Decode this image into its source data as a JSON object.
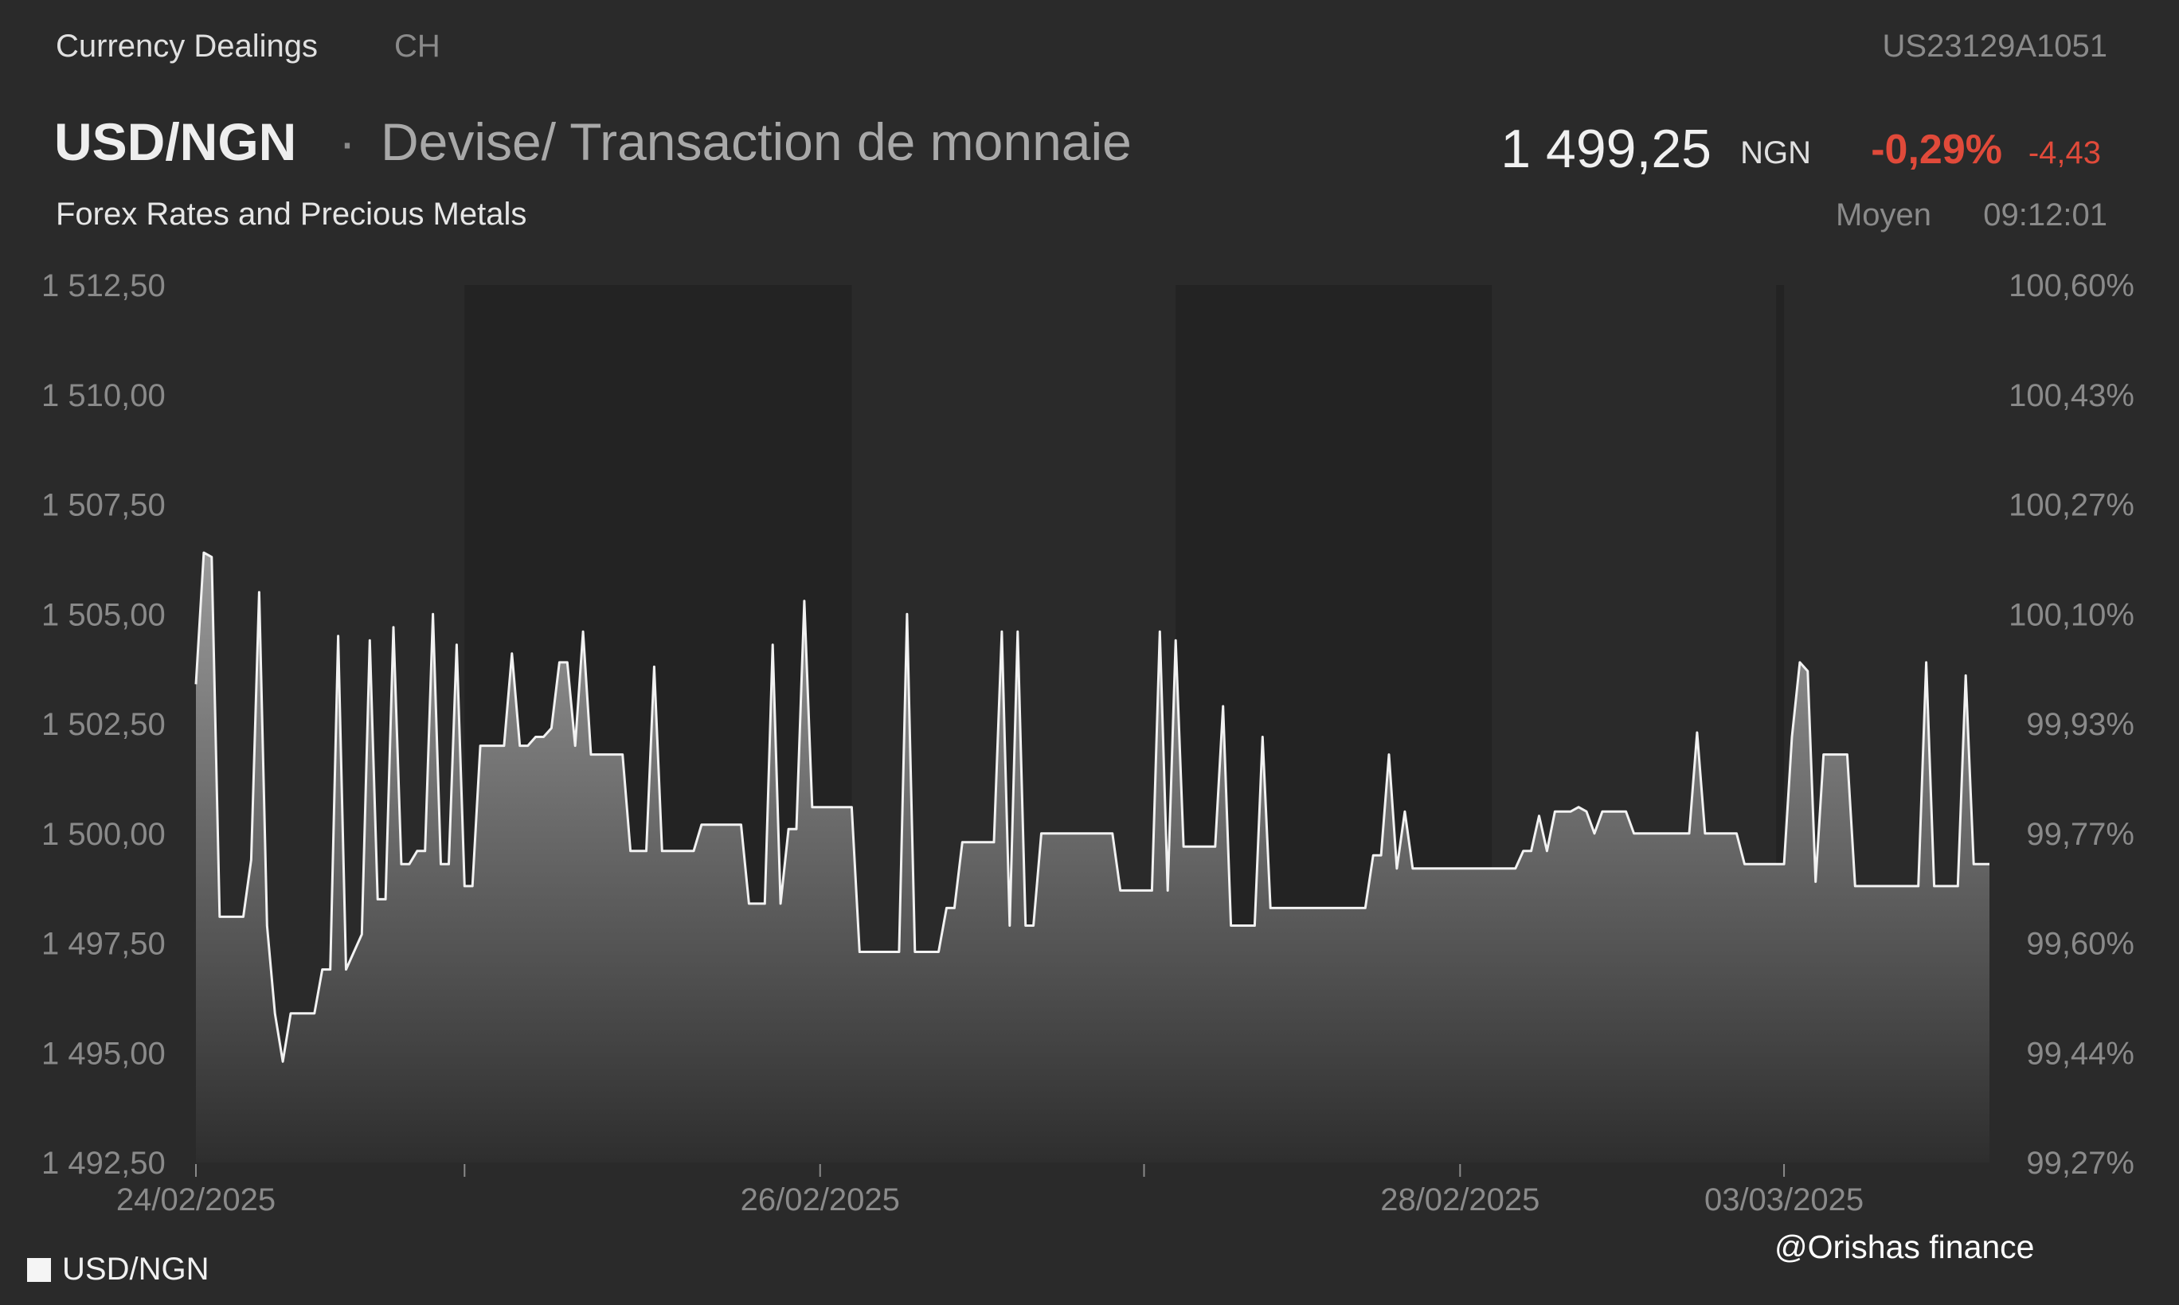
{
  "header": {
    "source": "Currency Dealings",
    "exchange": "CH",
    "isin": "US23129A1051",
    "symbol": "USD/NGN",
    "separator": "·",
    "name": "Devise/ Transaction de monnaie",
    "subtitle": "Forex Rates and Precious Metals",
    "price": "1 499,25",
    "currency": "NGN",
    "change_pct": "-0,29%",
    "change_abs": "-4,43",
    "price_kind": "Moyen",
    "time": "09:12:01"
  },
  "colors": {
    "background": "#2a2a2a",
    "shaded_band": "#232323",
    "line": "#f2f2f2",
    "negative": "#e04a3a"
  },
  "legend": {
    "label": "USD/NGN"
  },
  "watermark": "@Orishas finance",
  "chart_data": {
    "type": "area",
    "series": [
      {
        "name": "USD/NGN",
        "values": [
          1503.4,
          1506.4,
          1506.3,
          1498.1,
          1498.1,
          1498.1,
          1498.1,
          1499.4,
          1505.5,
          1497.9,
          1495.9,
          1494.8,
          1495.9,
          1495.9,
          1495.9,
          1495.9,
          1496.9,
          1496.9,
          1504.5,
          1496.9,
          1497.3,
          1497.7,
          1504.4,
          1498.5,
          1498.5,
          1504.7,
          1499.3,
          1499.3,
          1499.6,
          1499.6,
          1505.0,
          1499.3,
          1499.3,
          1504.3,
          1498.8,
          1498.8,
          1502.0,
          1502.0,
          1502.0,
          1502.0,
          1504.1,
          1502.0,
          1502.0,
          1502.2,
          1502.2,
          1502.4,
          1503.9,
          1503.9,
          1502.0,
          1504.6,
          1501.8,
          1501.8,
          1501.8,
          1501.8,
          1501.8,
          1499.6,
          1499.6,
          1499.6,
          1503.8,
          1499.6,
          1499.6,
          1499.6,
          1499.6,
          1499.6,
          1500.2,
          1500.2,
          1500.2,
          1500.2,
          1500.2,
          1500.2,
          1498.4,
          1498.4,
          1498.4,
          1504.3,
          1498.4,
          1500.1,
          1500.1,
          1505.3,
          1500.6,
          1500.6,
          1500.6,
          1500.6,
          1500.6,
          1500.6,
          1497.3,
          1497.3,
          1497.3,
          1497.3,
          1497.3,
          1497.3,
          1505.0,
          1497.3,
          1497.3,
          1497.3,
          1497.3,
          1498.3,
          1498.3,
          1499.8,
          1499.8,
          1499.8,
          1499.8,
          1499.8,
          1504.6,
          1497.9,
          1504.6,
          1497.9,
          1497.9,
          1500.0,
          1500.0,
          1500.0,
          1500.0,
          1500.0,
          1500.0,
          1500.0,
          1500.0,
          1500.0,
          1500.0,
          1498.7,
          1498.7,
          1498.7,
          1498.7,
          1498.7,
          1504.6,
          1498.7,
          1504.4,
          1499.7,
          1499.7,
          1499.7,
          1499.7,
          1499.7,
          1502.9,
          1497.9,
          1497.9,
          1497.9,
          1497.9,
          1502.2,
          1498.3,
          1498.3,
          1498.3,
          1498.3,
          1498.3,
          1498.3,
          1498.3,
          1498.3,
          1498.3,
          1498.3,
          1498.3,
          1498.3,
          1498.3,
          1499.5,
          1499.5,
          1501.8,
          1499.2,
          1500.5,
          1499.2,
          1499.2,
          1499.2,
          1499.2,
          1499.2,
          1499.2,
          1499.2,
          1499.2,
          1499.2,
          1499.2,
          1499.2,
          1499.2,
          1499.2,
          1499.2,
          1499.6,
          1499.6,
          1500.4,
          1499.6,
          1500.5,
          1500.5,
          1500.5,
          1500.6,
          1500.5,
          1500.0,
          1500.5,
          1500.5,
          1500.5,
          1500.5,
          1500.0,
          1500.0,
          1500.0,
          1500.0,
          1500.0,
          1500.0,
          1500.0,
          1500.0,
          1502.3,
          1500.0,
          1500.0,
          1500.0,
          1500.0,
          1500.0,
          1499.3,
          1499.3,
          1499.3,
          1499.3,
          1499.3,
          1499.3,
          1502.2,
          1503.9,
          1503.7,
          1498.9,
          1501.8,
          1501.8,
          1501.8,
          1501.8,
          1498.8,
          1498.8,
          1498.8,
          1498.8,
          1498.8,
          1498.8,
          1498.8,
          1498.8,
          1498.8,
          1503.9,
          1498.8,
          1498.8,
          1498.8,
          1498.8,
          1503.6,
          1499.3,
          1499.3,
          1499.3
        ]
      }
    ],
    "x_tick_labels": [
      "24/02/2025",
      "26/02/2025",
      "28/02/2025",
      "03/03/2025"
    ],
    "x_tick_index": [
      0,
      79,
      160,
      201
    ],
    "x_minor_tick_index": [
      34,
      120
    ],
    "shaded_ranges_index": [
      [
        34,
        83
      ],
      [
        124,
        164
      ],
      [
        200,
        201
      ]
    ],
    "y_left_ticks": [
      "1 512,50",
      "1 510,00",
      "1 507,50",
      "1 505,00",
      "1 502,50",
      "1 500,00",
      "1 497,50",
      "1 495,00",
      "1 492,50"
    ],
    "y_left_values": [
      1512.5,
      1510.0,
      1507.5,
      1505.0,
      1502.5,
      1500.0,
      1497.5,
      1495.0,
      1492.5
    ],
    "y_right_ticks": [
      "100,60%",
      "100,43%",
      "100,27%",
      "100,10%",
      "99,93%",
      "99,77%",
      "99,60%",
      "99,44%",
      "99,27%"
    ],
    "ylim": [
      1492.5,
      1512.5
    ],
    "xlabel": "",
    "ylabel": "",
    "legend": "bottom-left",
    "grid": false
  }
}
